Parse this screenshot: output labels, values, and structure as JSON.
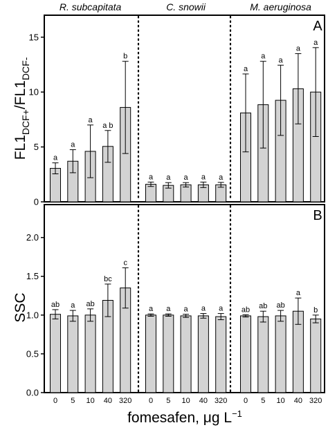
{
  "chart_data": {
    "type": "bar",
    "xlabel": "fomesafen, μg L",
    "xlabel_exponent": "−1",
    "groups": [
      "R. subcapitata",
      "C. snowii",
      "M. aeruginosa"
    ],
    "categories": [
      "0",
      "5",
      "10",
      "40",
      "320"
    ],
    "bar_color": "#d3d3d3",
    "panels": [
      {
        "letter": "A",
        "ylabel_parts": [
          "FL1",
          "DCF+",
          "/FL1",
          "DCF-"
        ],
        "ylim": [
          0,
          17
        ],
        "yticks": [
          "0",
          "5",
          "10",
          "15"
        ],
        "series": [
          {
            "name": "R. subcapitata",
            "values": [
              3.05,
              3.7,
              4.6,
              5.05,
              8.6
            ],
            "err": [
              0.5,
              1.05,
              2.4,
              1.45,
              4.2
            ],
            "sig": [
              "a",
              "a",
              "a",
              "a b",
              "b"
            ]
          },
          {
            "name": "C. snowii",
            "values": [
              1.6,
              1.5,
              1.55,
              1.55,
              1.55
            ],
            "err": [
              0.2,
              0.25,
              0.2,
              0.25,
              0.22
            ],
            "sig": [
              "a",
              "a",
              "a",
              "a",
              "a"
            ]
          },
          {
            "name": "M. aeruginosa",
            "values": [
              8.1,
              8.85,
              9.25,
              10.3,
              10.0
            ],
            "err": [
              3.55,
              3.95,
              3.2,
              3.2,
              4.05
            ],
            "sig": [
              "a",
              "a",
              "a",
              "a",
              "a"
            ]
          }
        ]
      },
      {
        "letter": "B",
        "ylabel": "SSC",
        "ylim": [
          0,
          2.3
        ],
        "yticks": [
          "0.0",
          "0.5",
          "1.0",
          "1.5",
          "2.0"
        ],
        "series": [
          {
            "name": "R. subcapitata",
            "values": [
              1.01,
              0.99,
              1.0,
              1.19,
              1.35
            ],
            "err": [
              0.06,
              0.07,
              0.08,
              0.21,
              0.26
            ],
            "sig": [
              "ab",
              "a",
              "ab",
              "bc",
              "c"
            ]
          },
          {
            "name": "C. snowii",
            "values": [
              1.0,
              1.0,
              0.99,
              0.99,
              0.98
            ],
            "err": [
              0.015,
              0.015,
              0.02,
              0.03,
              0.04
            ],
            "sig": [
              "a",
              "a",
              "a",
              "a",
              "a"
            ]
          },
          {
            "name": "M. aeruginosa",
            "values": [
              0.99,
              0.98,
              0.99,
              1.05,
              0.95
            ],
            "err": [
              0.015,
              0.07,
              0.07,
              0.17,
              0.05
            ],
            "sig": [
              "ab",
              "ab",
              "ab",
              "a",
              "b"
            ]
          }
        ]
      }
    ]
  }
}
